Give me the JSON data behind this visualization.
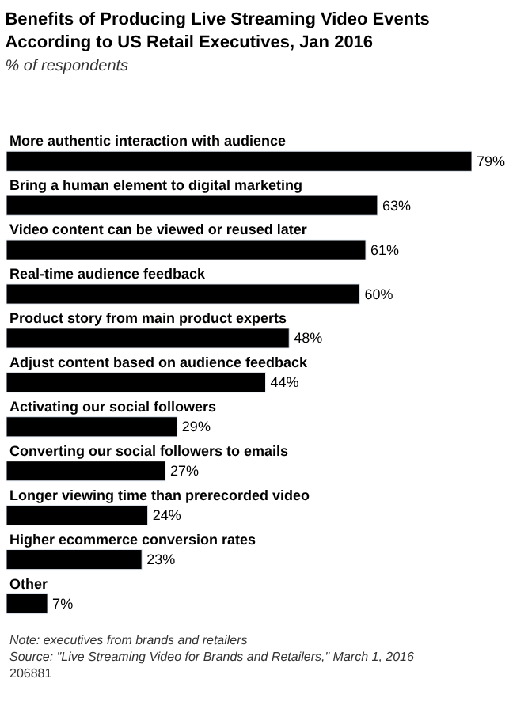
{
  "chart_data": {
    "type": "bar",
    "orientation": "horizontal",
    "title": "Benefits of Producing Live Streaming Video Events According to US Retail Executives, Jan 2016",
    "subtitle": "% of respondents",
    "categories": [
      "More authentic interaction with audience",
      "Bring a human element to digital marketing",
      "Video content can be viewed or reused later",
      "Real-time audience feedback",
      "Product story from main product experts",
      "Adjust content based on audience feedback",
      "Activating our social followers",
      "Converting our social followers to emails",
      "Longer viewing time than prerecorded video",
      "Higher ecommerce conversion rates",
      "Other"
    ],
    "values": [
      79,
      63,
      61,
      60,
      48,
      44,
      29,
      27,
      24,
      23,
      7
    ],
    "value_labels": [
      "79%",
      "63%",
      "61%",
      "60%",
      "48%",
      "44%",
      "29%",
      "27%",
      "24%",
      "23%",
      "7%"
    ],
    "relative": false,
    "color": "#000000",
    "legend": false,
    "annotations": [
      "Note: executives from brands and retailers",
      "Source: \"Live Streaming Video for Brands and Retailers,\" March 1, 2016",
      "206881"
    ]
  }
}
